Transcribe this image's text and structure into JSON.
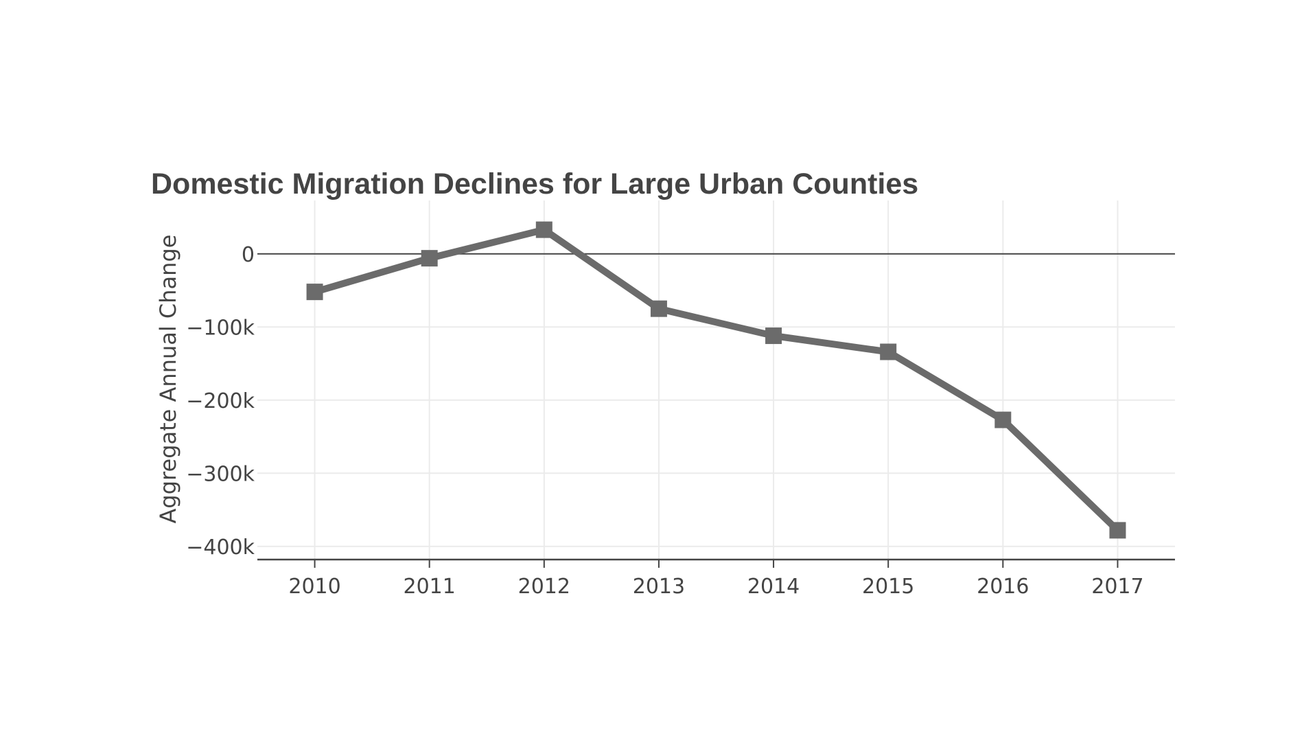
{
  "chart_data": {
    "type": "line",
    "title": "Domestic Migration Declines for Large Urban Counties",
    "xlabel": "",
    "ylabel": "Aggregate Annual Change",
    "x": [
      2010,
      2011,
      2012,
      2013,
      2014,
      2015,
      2016,
      2017
    ],
    "x_tick_labels": [
      "2010",
      "2011",
      "2012",
      "2013",
      "2014",
      "2015",
      "2016",
      "2017"
    ],
    "series": [
      {
        "name": "Aggregate Annual Change",
        "values": [
          -52000,
          -6000,
          33000,
          -75000,
          -112000,
          -134000,
          -227000,
          -378000
        ],
        "color": "#6b6b6b",
        "marker": "square"
      }
    ],
    "yticks": [
      0,
      -100000,
      -200000,
      -300000,
      -400000
    ],
    "y_tick_labels": [
      "0",
      "−100k",
      "−200k",
      "−300k",
      "−400k"
    ],
    "ylim": [
      -418000,
      73000
    ],
    "xlim": [
      2009.5,
      2017.5
    ],
    "grid": true,
    "legend": "none"
  }
}
